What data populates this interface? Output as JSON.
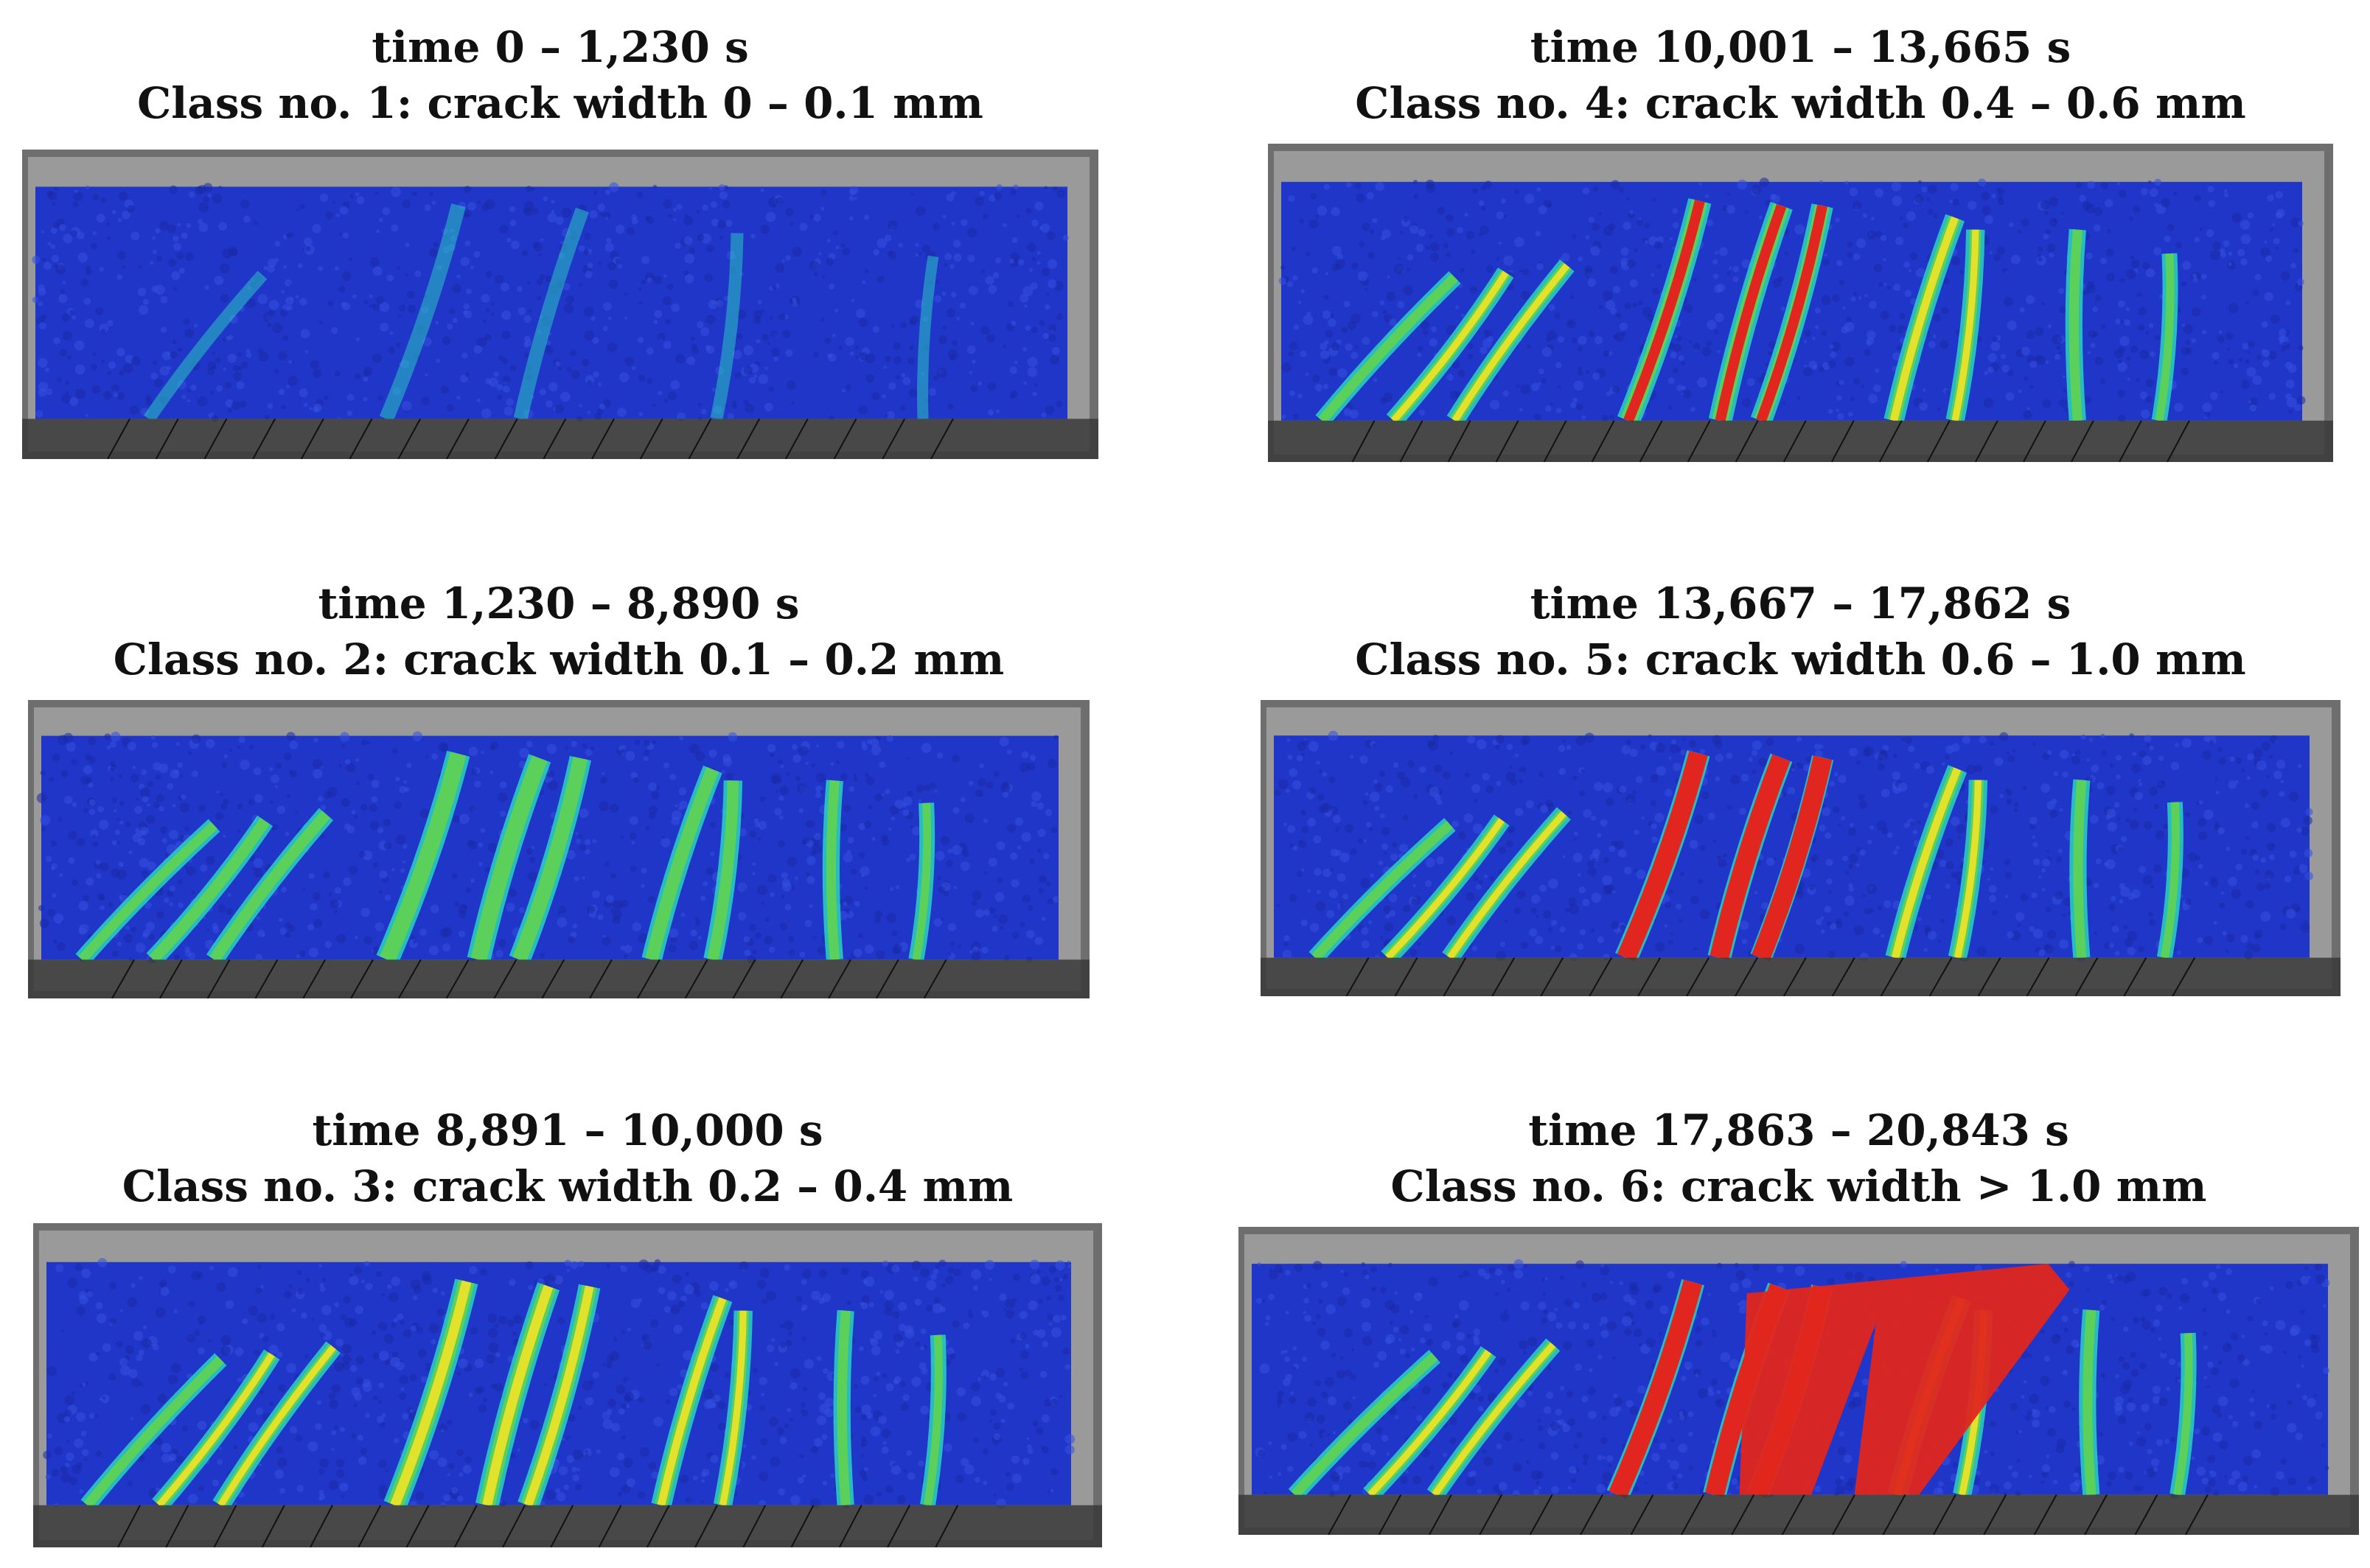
{
  "figure": {
    "panels": [
      {
        "id": "p1",
        "time": "time 0 – 1,230 s",
        "class_label": "Class no. 1: crack width 0 – 0.1 mm",
        "crack_level": 1,
        "colors": {
          "concrete_bg": "#8a8a8a",
          "strain_low": "#2a3fd0"
        }
      },
      {
        "id": "p4",
        "time": "time 10,001 – 13,665 s",
        "class_label": "Class no. 4: crack width 0.4 – 0.6 mm",
        "crack_level": 4
      },
      {
        "id": "p2",
        "time": "time 1,230 – 8,890 s",
        "class_label": "Class no. 2: crack width 0.1 – 0.2 mm",
        "crack_level": 2
      },
      {
        "id": "p5",
        "time": "time 13,667 – 17,862 s",
        "class_label": "Class no. 5: crack width 0.6 – 1.0 mm",
        "crack_level": 5
      },
      {
        "id": "p3",
        "time": "time 8,891 – 10,000 s",
        "class_label": "Class no. 3: crack width 0.2 – 0.4 mm",
        "crack_level": 3
      },
      {
        "id": "p6",
        "time": "time 17,863 – 20,843 s",
        "class_label": "Class no. 6: crack width > 1.0 mm",
        "crack_level": 6
      }
    ],
    "colors": {
      "field_blue": "#2036c8",
      "field_blue_dark": "#1a2aa8",
      "crack_cyan": "#2ad3c0",
      "crack_green": "#5bd05a",
      "crack_yellow": "#e2e12c",
      "crack_red": "#e0261e",
      "frame_gray": "#6e6e6e"
    }
  }
}
